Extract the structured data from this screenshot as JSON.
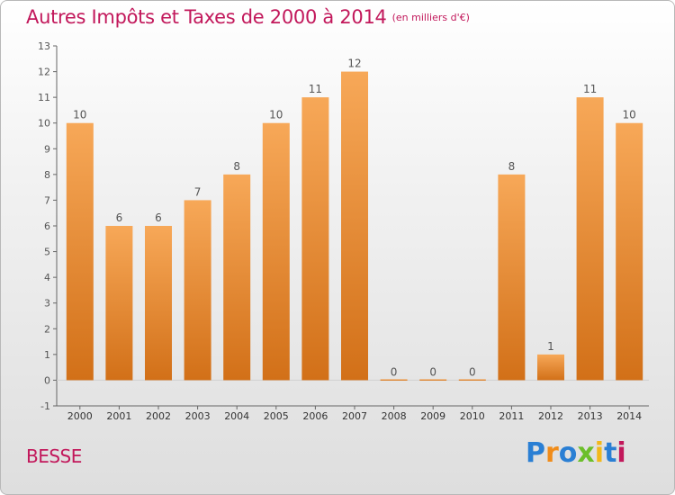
{
  "header": {
    "title": "Autres Impôts et Taxes de 2000 à 2014",
    "unit": "(en milliers d'€)"
  },
  "footer": {
    "commune": "BESSE",
    "logo_letters": [
      "P",
      "r",
      "o",
      "x",
      "i",
      "t",
      "i"
    ],
    "logo_colors": [
      "#2a7fd4",
      "#f08c1a",
      "#2a7fd4",
      "#6cbf2a",
      "#f2b81a",
      "#2a7fd4",
      "#c2185b"
    ]
  },
  "colors": {
    "bar_top": "#f7a858",
    "bar_bottom": "#d27018",
    "title": "#c2185b",
    "axis": "#666666",
    "grid": "#d0d0d0"
  },
  "chart_data": {
    "type": "bar",
    "categories": [
      "2000",
      "2001",
      "2002",
      "2003",
      "2004",
      "2005",
      "2006",
      "2007",
      "2008",
      "2009",
      "2010",
      "2011",
      "2012",
      "2013",
      "2014"
    ],
    "values": [
      10,
      6,
      6,
      7,
      8,
      10,
      11,
      12,
      0,
      0,
      0,
      8,
      1,
      11,
      10
    ],
    "data_labels": [
      "10",
      "6",
      "6",
      "7",
      "8",
      "10",
      "11",
      "12",
      "0",
      "0",
      "0",
      "8",
      "1",
      "11",
      "10"
    ],
    "yticks": [
      "-1",
      "0",
      "1",
      "2",
      "3",
      "4",
      "5",
      "6",
      "7",
      "8",
      "9",
      "10",
      "11",
      "12",
      "13"
    ],
    "ylim": [
      -1,
      13
    ],
    "grid": false,
    "legend": "none"
  }
}
